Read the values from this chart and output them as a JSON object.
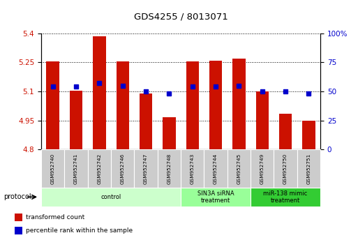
{
  "title": "GDS4255 / 8013071",
  "samples": [
    "GSM952740",
    "GSM952741",
    "GSM952742",
    "GSM952746",
    "GSM952747",
    "GSM952748",
    "GSM952743",
    "GSM952744",
    "GSM952745",
    "GSM952749",
    "GSM952750",
    "GSM952751"
  ],
  "red_values": [
    5.255,
    5.105,
    5.385,
    5.255,
    5.09,
    4.965,
    5.255,
    5.26,
    5.27,
    5.1,
    4.985,
    4.95
  ],
  "blue_values": [
    54,
    54,
    57,
    55,
    50,
    48,
    54,
    54,
    55,
    50,
    50,
    48
  ],
  "ymin": 4.8,
  "ymax": 5.4,
  "y2min": 0,
  "y2max": 100,
  "yticks": [
    4.8,
    4.95,
    5.1,
    5.25,
    5.4
  ],
  "y2ticks": [
    0,
    25,
    50,
    75,
    100
  ],
  "bar_color": "#cc1100",
  "blue_color": "#0000cc",
  "group_colors": [
    "#ccffcc",
    "#99ff99",
    "#33cc33"
  ],
  "group_labels": [
    "control",
    "SIN3A siRNA\ntreatment",
    "miR-138 mimic\ntreatment"
  ],
  "group_ranges": [
    [
      0,
      5
    ],
    [
      6,
      8
    ],
    [
      9,
      11
    ]
  ],
  "legend_labels": [
    "transformed count",
    "percentile rank within the sample"
  ],
  "legend_colors": [
    "#cc1100",
    "#0000cc"
  ],
  "protocol_label": "protocol"
}
